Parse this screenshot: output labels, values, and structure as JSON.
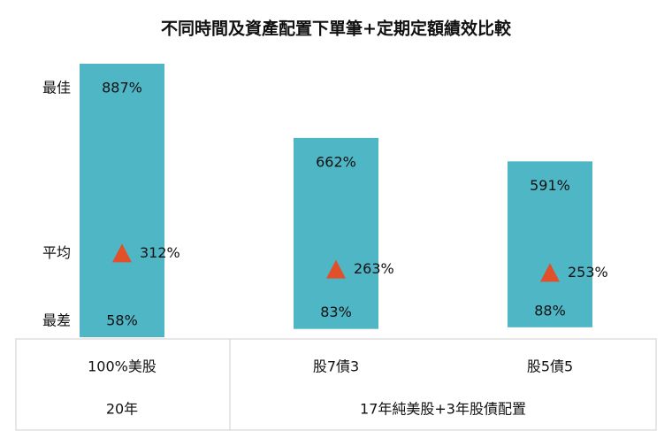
{
  "chart_data": {
    "type": "range-bar",
    "title": "不同時間及資產配置下單筆+定期定額績效比較",
    "categories": [
      "100%美股",
      "股7債3",
      "股5債5"
    ],
    "groups": [
      "20年",
      "17年純美股+3年股債配置"
    ],
    "series": [
      {
        "name": "最佳",
        "color": "#4fb6c6",
        "values": [
          887,
          662,
          591
        ],
        "value_labels": [
          "887%",
          "662%",
          "591%"
        ]
      },
      {
        "name": "平均",
        "color": "#e0502a",
        "values": [
          312,
          263,
          253
        ],
        "value_labels": [
          "312%",
          "263%",
          "253%"
        ]
      },
      {
        "name": "最差",
        "color": "#4fb6c6",
        "values": [
          58,
          83,
          88
        ],
        "value_labels": [
          "58%",
          "83%",
          "88%"
        ]
      }
    ]
  }
}
